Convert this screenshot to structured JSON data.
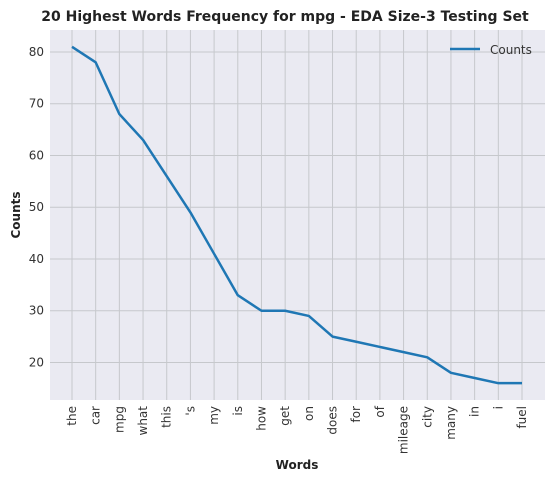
{
  "chart_data": {
    "type": "line",
    "title": "20 Highest Words Frequency for mpg - EDA Size-3 Testing Set",
    "xlabel": "Words",
    "ylabel": "Counts",
    "categories": [
      "the",
      "car",
      "mpg",
      "what",
      "this",
      "'s",
      "my",
      "is",
      "how",
      "get",
      "on",
      "does",
      "for",
      "of",
      "mileage",
      "city",
      "many",
      "in",
      "i",
      "fuel"
    ],
    "series": [
      {
        "name": "Counts",
        "values": [
          81,
          78,
          68,
          63,
          56,
          49,
          41,
          33,
          30,
          30,
          29,
          25,
          24,
          23,
          22,
          21,
          18,
          17,
          16,
          16
        ],
        "color": "#1f77b4"
      }
    ],
    "ylim": [
      12.75,
      84.25
    ],
    "yticks": [
      20,
      30,
      40,
      50,
      60,
      70,
      80
    ],
    "grid": true,
    "legend_position": "top-right",
    "background_color": "#eaeaf2",
    "grid_color": "#c6c8cc"
  }
}
